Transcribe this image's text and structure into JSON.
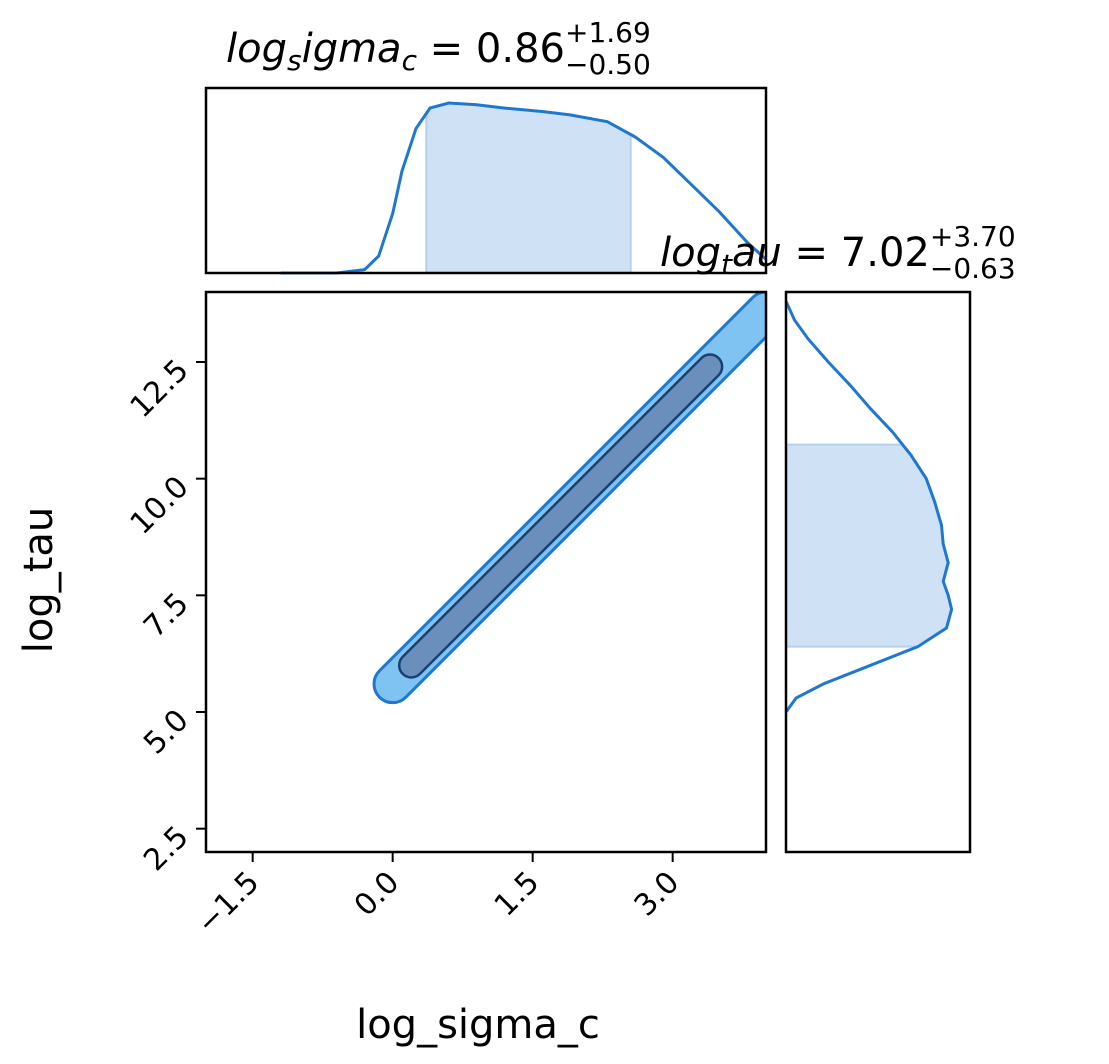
{
  "chart_data": {
    "type": "corner",
    "colors": {
      "line": "#1f77d0",
      "fill_light": "#cfe2f5",
      "contour_outer": "#7ec3f2",
      "contour_inner": "#6b8fbc"
    },
    "top_title": {
      "var": "log",
      "sub": "s",
      "rest": "igma",
      "sub2": "c",
      "eq": " = 0.86",
      "sup": "+1.69",
      "subsc": "−0.50"
    },
    "right_title": {
      "var": "log",
      "sub": "t",
      "rest": "au",
      "eq": " = 7.02",
      "sup": "+3.70",
      "subsc": "−0.63"
    },
    "xlabel": "log_sigma_c",
    "ylabel": "log_tau",
    "xlim": [
      -2.0,
      4.0
    ],
    "ylim": [
      2.0,
      14.0
    ],
    "x_ticks": [
      -1.5,
      0.0,
      1.5,
      3.0
    ],
    "x_tick_labels": [
      "−1.5",
      "0.0",
      "1.5",
      "3.0"
    ],
    "y_ticks": [
      2.5,
      5.0,
      7.5,
      10.0,
      12.5
    ],
    "y_tick_labels": [
      "2.5",
      "5.0",
      "7.5",
      "10.0",
      "12.5"
    ],
    "top_marginal": {
      "x": [
        -1.2,
        -0.6,
        -0.3,
        -0.15,
        0.0,
        0.1,
        0.25,
        0.4,
        0.6,
        0.9,
        1.2,
        1.6,
        1.9,
        2.3,
        2.6,
        2.9,
        3.2,
        3.5,
        3.8,
        4.0
      ],
      "density": [
        0.0,
        0.0,
        0.02,
        0.1,
        0.35,
        0.6,
        0.85,
        0.97,
        1.0,
        0.99,
        0.97,
        0.95,
        0.93,
        0.89,
        0.8,
        0.68,
        0.52,
        0.36,
        0.18,
        0.08
      ],
      "band": [
        0.36,
        2.55
      ]
    },
    "right_marginal": {
      "y": [
        5.0,
        5.3,
        5.6,
        6.0,
        6.4,
        6.8,
        7.2,
        7.5,
        7.8,
        8.2,
        8.6,
        9.0,
        9.5,
        10.0,
        10.5,
        11.0,
        11.5,
        12.0,
        12.5,
        13.0,
        13.4,
        13.8
      ],
      "density": [
        0.0,
        0.06,
        0.22,
        0.5,
        0.78,
        0.95,
        0.98,
        0.96,
        0.93,
        0.96,
        0.93,
        0.92,
        0.88,
        0.83,
        0.74,
        0.63,
        0.5,
        0.38,
        0.25,
        0.13,
        0.05,
        0.0
      ],
      "band": [
        6.4,
        10.73
      ]
    },
    "contours": {
      "outer": {
        "start": [
          0.0,
          5.6
        ],
        "end": [
          4.0,
          13.6
        ],
        "half_width": 0.4
      },
      "inner": {
        "start": [
          0.2,
          6.0
        ],
        "end": [
          3.4,
          12.4
        ],
        "half_width": 0.26
      }
    }
  }
}
